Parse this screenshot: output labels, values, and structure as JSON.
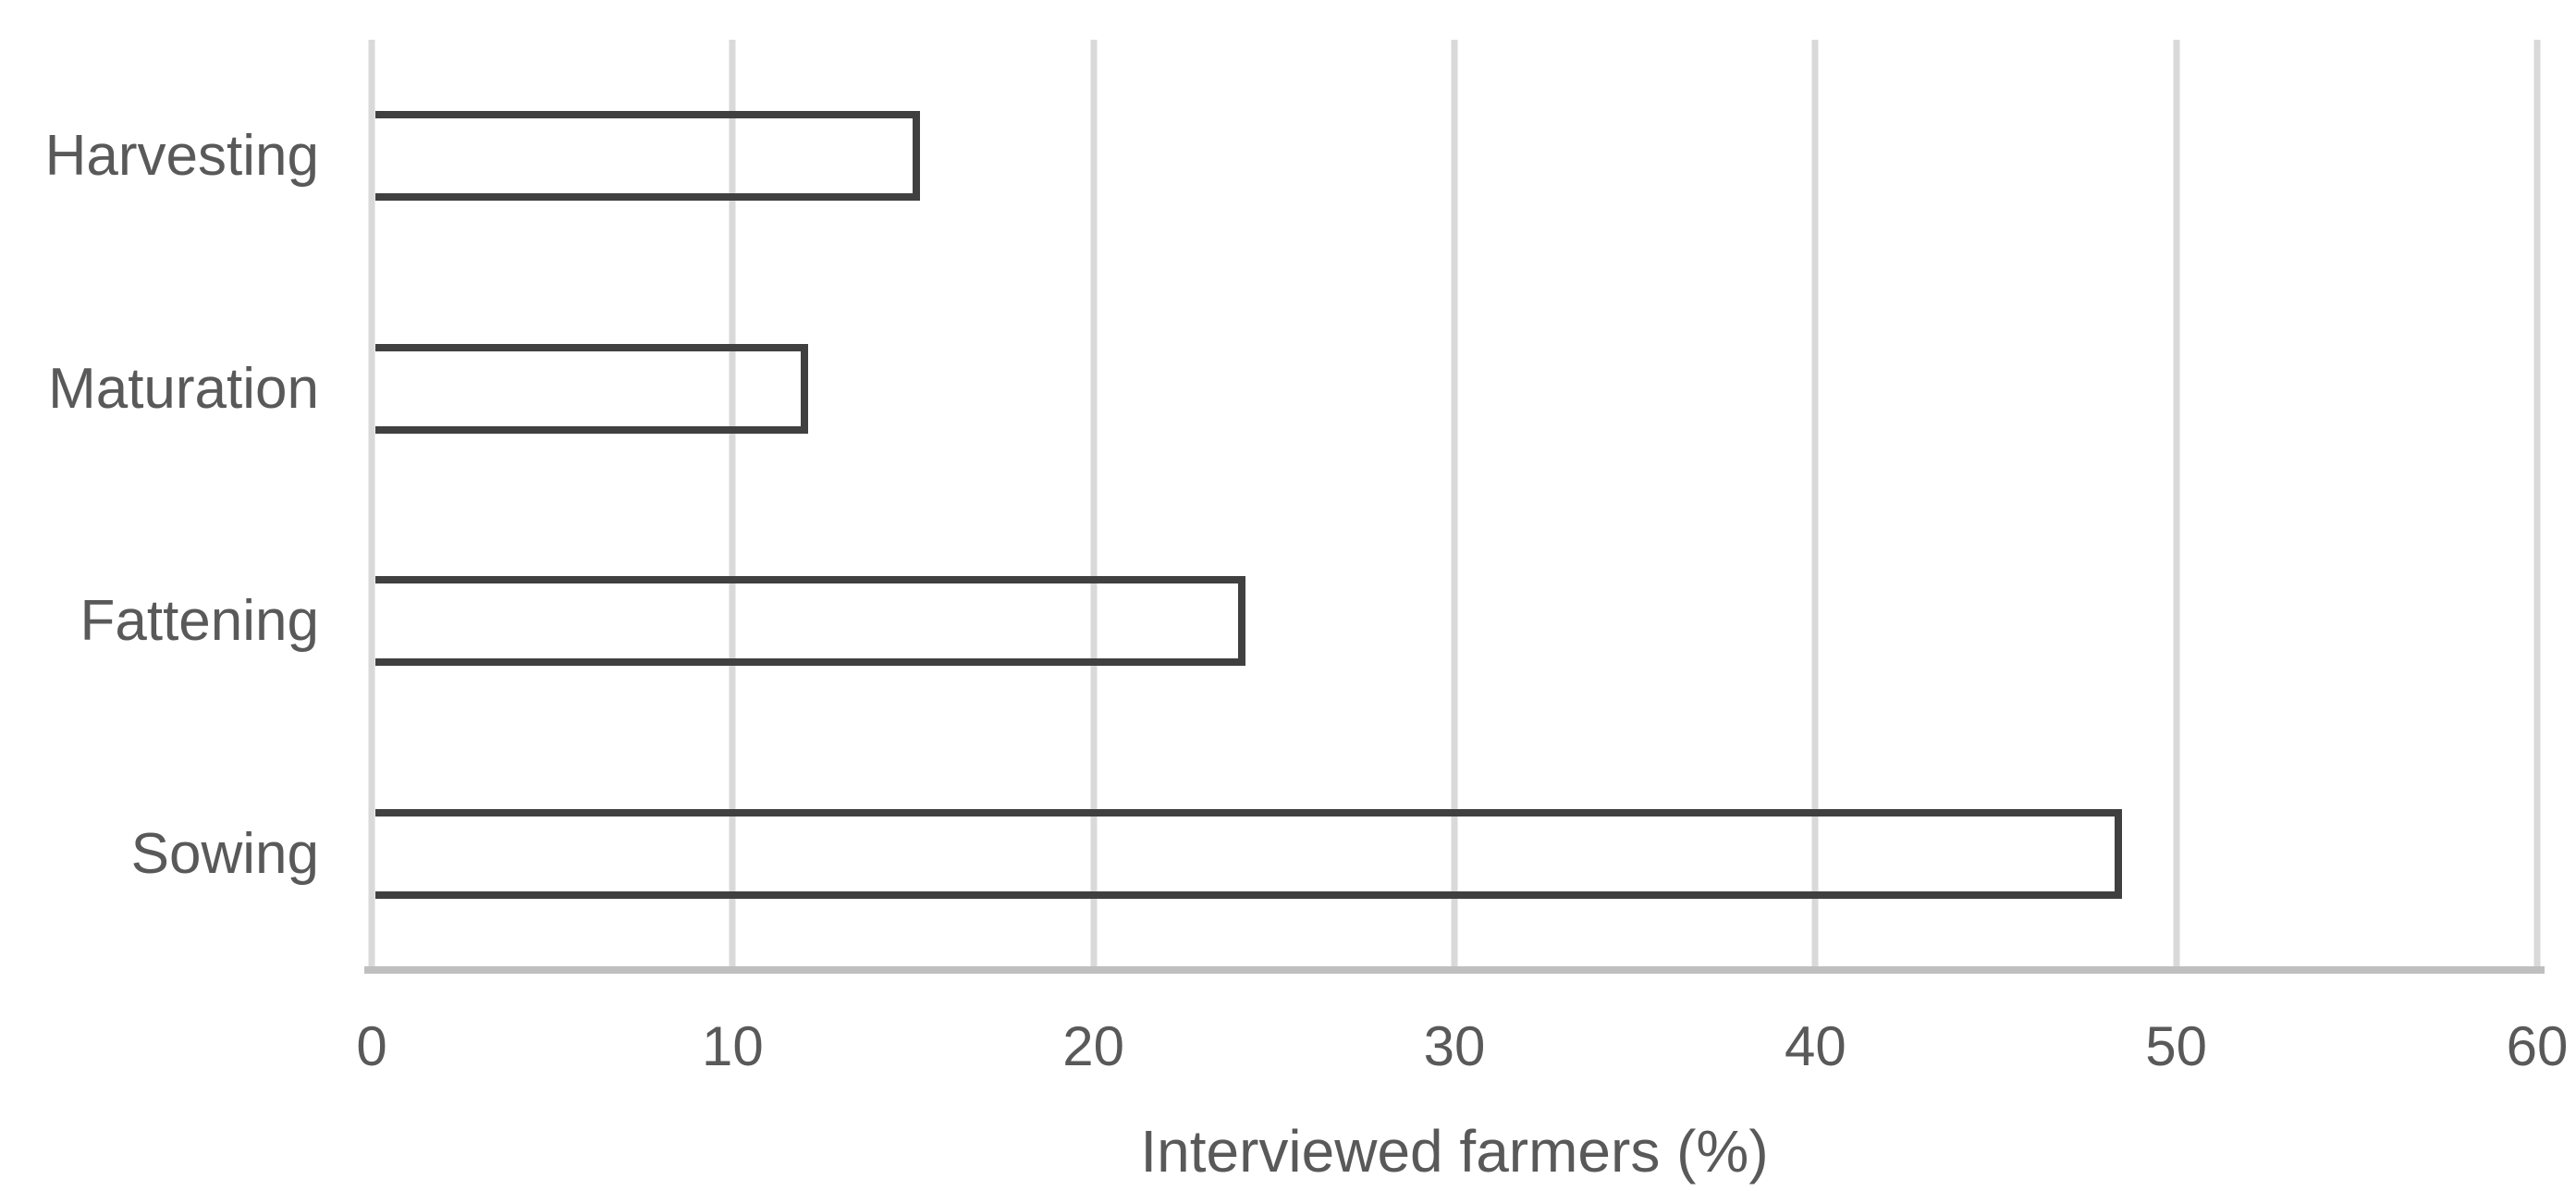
{
  "chart_data": {
    "type": "bar",
    "orientation": "horizontal",
    "title": "",
    "xlabel": "Interviewed farmers (%)",
    "ylabel": "",
    "categories": [
      "Harvesting",
      "Maturation",
      "Fattening",
      "Sowing"
    ],
    "values": [
      15.2,
      12.1,
      24.2,
      48.5
    ],
    "xlim": [
      0,
      60
    ],
    "xticks": [
      "0",
      "10",
      "20",
      "30",
      "40",
      "50",
      "60"
    ],
    "grid": "vertical-gridlines-only",
    "legend": "none",
    "bar_style": {
      "fill": "transparent",
      "border_color": "#404040"
    },
    "colors": {
      "gridline": "#D9D9D9",
      "axis_line": "#BFBFBF",
      "text": "#595959",
      "background": "#FFFFFF"
    }
  }
}
